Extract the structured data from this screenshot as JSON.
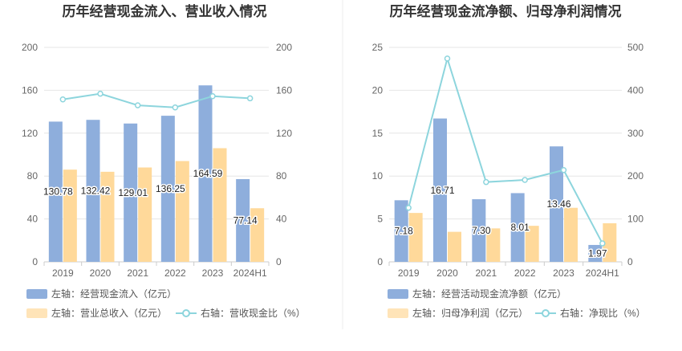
{
  "chart_data": [
    {
      "type": "bar+line",
      "title": "历年经营现金流入、营业收入情况",
      "categories": [
        "2019",
        "2020",
        "2021",
        "2022",
        "2023",
        "2024H1"
      ],
      "series": [
        {
          "name": "左轴：经营现金流入（亿元）",
          "kind": "bar",
          "axis": "left",
          "color": "#8eaedc",
          "values": [
            130.78,
            132.42,
            129.01,
            136.25,
            164.59,
            77.14
          ],
          "labels": [
            "130.78",
            "132.42",
            "129.01",
            "136.25",
            "164.59",
            "77.14"
          ]
        },
        {
          "name": "左轴：营业总收入（亿元）",
          "kind": "bar",
          "axis": "left",
          "color": "#ffd99a",
          "values": [
            86,
            84,
            88,
            94,
            106,
            50
          ]
        },
        {
          "name": "右轴：营收现金比（%）",
          "kind": "line",
          "axis": "right",
          "color": "#8dd5dd",
          "values": [
            151.5,
            156.8,
            146,
            144,
            154.5,
            152.5
          ]
        }
      ],
      "ylim_left": [
        0,
        200
      ],
      "yticks_left": [
        0,
        40,
        80,
        120,
        160,
        200
      ],
      "ylim_right": [
        0,
        200
      ],
      "yticks_right": [
        0,
        40,
        80,
        120,
        160,
        200
      ],
      "legend_position": "bottom-left"
    },
    {
      "type": "bar+line",
      "title": "历年经营现金流净额、归母净利润情况",
      "categories": [
        "2019",
        "2020",
        "2021",
        "2022",
        "2023",
        "2024H1"
      ],
      "series": [
        {
          "name": "左轴：经营活动现金流净额（亿元）",
          "kind": "bar",
          "axis": "left",
          "color": "#8eaedc",
          "values": [
            7.18,
            16.71,
            7.3,
            8.01,
            13.46,
            1.97
          ],
          "labels": [
            "7.18",
            "16.71",
            "7.30",
            "8.01",
            "13.46",
            "1.97"
          ]
        },
        {
          "name": "左轴：归母净利润（亿元）",
          "kind": "bar",
          "axis": "left",
          "color": "#ffd99a",
          "values": [
            5.7,
            3.5,
            3.9,
            4.2,
            6.3,
            4.5
          ]
        },
        {
          "name": "右轴：净现比（%）",
          "kind": "line",
          "axis": "right",
          "color": "#8dd5dd",
          "values": [
            126,
            474,
            186,
            191,
            214,
            43
          ]
        }
      ],
      "ylim_left": [
        0,
        25
      ],
      "yticks_left": [
        0,
        5,
        10,
        15,
        20,
        25
      ],
      "ylim_right": [
        0,
        500
      ],
      "yticks_right": [
        0,
        100,
        200,
        300,
        400,
        500
      ],
      "legend_position": "bottom-left"
    }
  ]
}
